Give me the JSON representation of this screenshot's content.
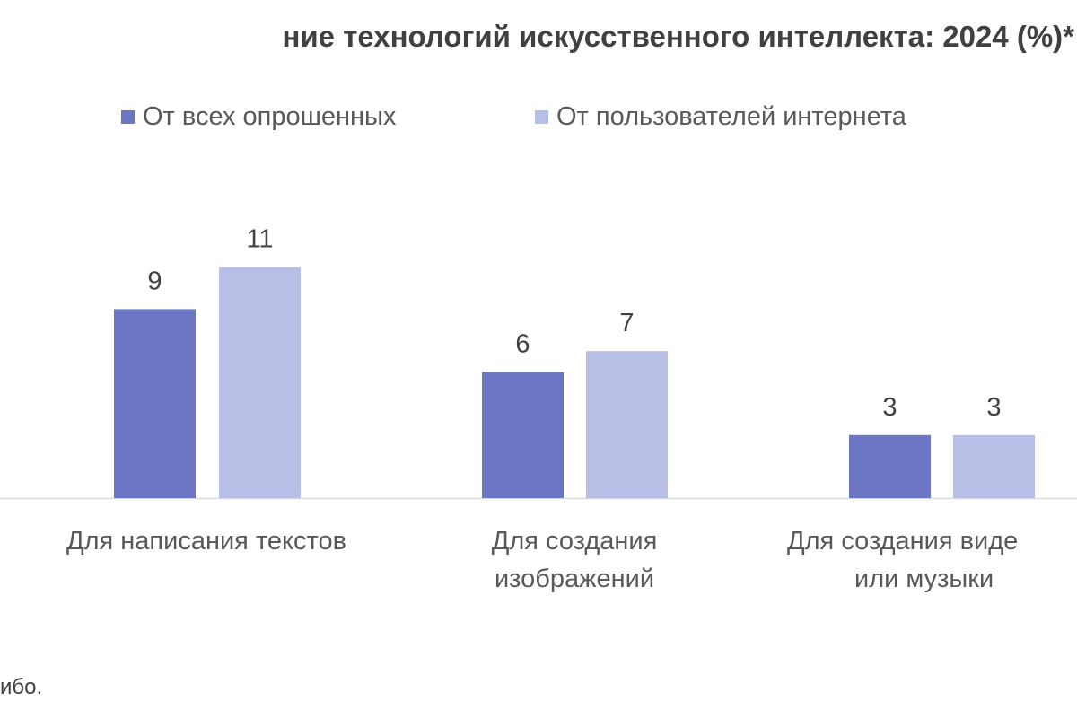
{
  "chart_data": {
    "type": "bar",
    "title": "ние технологий искусственного интеллекта: 2024 (%)*",
    "categories": [
      [
        "Для написания текстов"
      ],
      [
        "Для создания",
        "изображений"
      ],
      [
        "Для создания виде",
        "или музыки"
      ]
    ],
    "series": [
      {
        "name": "От всех опрошенных",
        "color": "#6b77c4",
        "values": [
          9,
          6,
          3
        ]
      },
      {
        "name": "От пользователей интернета",
        "color": "#b8bfe6",
        "values": [
          11,
          7,
          3
        ]
      }
    ],
    "ylim": [
      0,
      12
    ],
    "grid": false,
    "legend": "top-center",
    "xlabel": "",
    "ylabel": ""
  },
  "footnote": "ибо."
}
